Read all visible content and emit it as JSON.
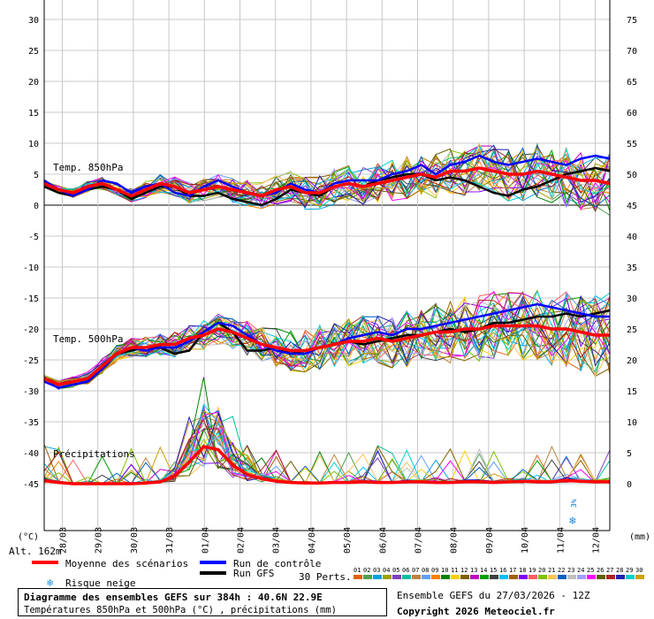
{
  "chart_data": {
    "type": "line",
    "title": "Diagramme des ensembles GEFS sur 384h : 40.6N 22.9E",
    "subtitle": "Températures 850hPa et 500hPa (°C) , précipitations (mm)",
    "left_axis": {
      "unit": "(°C)",
      "ticks": [
        30,
        25,
        20,
        15,
        10,
        5,
        0,
        -5,
        -10,
        -15,
        -20,
        -25,
        -30,
        -35,
        -40,
        -45
      ],
      "range": [
        -45,
        30
      ]
    },
    "right_axis": {
      "unit": "(mm)",
      "ticks": [
        75,
        70,
        65,
        60,
        55,
        50,
        45,
        40,
        35,
        30,
        25,
        20,
        15,
        10,
        5,
        0
      ],
      "range": [
        0,
        75
      ]
    },
    "x_ticks": [
      "28/03",
      "29/03",
      "30/03",
      "31/03",
      "01/04",
      "02/04",
      "03/04",
      "04/04",
      "05/04",
      "06/04",
      "07/04",
      "08/04",
      "09/04",
      "10/04",
      "11/04",
      "12/04"
    ],
    "section_labels": {
      "t850": "Temp. 850hPa",
      "t500": "Temp. 500hPa",
      "precip": "Précipitations"
    },
    "altitude": "Alt. 162m",
    "grid": true,
    "series": [
      {
        "name": "Moyenne des scénarios",
        "color": "#ff0000",
        "role": "mean"
      },
      {
        "name": "Run de contrôle",
        "color": "#0000ff",
        "role": "control"
      },
      {
        "name": "Run GFS",
        "color": "#000000",
        "role": "gfs"
      }
    ],
    "t850_mean": [
      3.5,
      2.5,
      2,
      3,
      3.5,
      2.5,
      1.5,
      2.5,
      3.5,
      3,
      2,
      2.5,
      3,
      2.5,
      2,
      1.5,
      2.5,
      3,
      2,
      2,
      3,
      3.5,
      3,
      3.5,
      4,
      4.5,
      5,
      4.5,
      5.5,
      5.5,
      6,
      5.5,
      5,
      5,
      5.5,
      5,
      4.5,
      4,
      4,
      3.5
    ],
    "t850_control": [
      4,
      2.5,
      1.5,
      2.5,
      4,
      3.5,
      2,
      3,
      3.5,
      2,
      1.5,
      3,
      4,
      3,
      2,
      1.5,
      2,
      3.5,
      2.5,
      2,
      3.5,
      4,
      4,
      4,
      5,
      5.5,
      6.5,
      5,
      6.5,
      7,
      8,
      7,
      6.5,
      7,
      7.5,
      7,
      6.5,
      7.5,
      8,
      7.5
    ],
    "t850_gfs": [
      3,
      2,
      1.5,
      2.5,
      3,
      2.5,
      1,
      2,
      3,
      3,
      1.5,
      1.5,
      2,
      1,
      0.5,
      0,
      1,
      2.5,
      2,
      1.5,
      3,
      3.5,
      3,
      4,
      4.5,
      5,
      5,
      4,
      4.5,
      4,
      3,
      2,
      1.5,
      2.5,
      3,
      4,
      5,
      5.5,
      6,
      5.5
    ],
    "t500_mean": [
      -28,
      -29,
      -28.5,
      -28,
      -26,
      -24,
      -23,
      -23,
      -22.5,
      -22.5,
      -21.5,
      -21,
      -20,
      -20.5,
      -21.5,
      -22.5,
      -23,
      -23.5,
      -23.5,
      -23,
      -22.5,
      -22,
      -22,
      -21.5,
      -22,
      -21.5,
      -21,
      -20.5,
      -20.5,
      -20,
      -20,
      -19.5,
      -19.5,
      -19.5,
      -19.5,
      -20,
      -20,
      -20.5,
      -21,
      -21
    ],
    "t500_control": [
      -28.5,
      -29.5,
      -29,
      -28.5,
      -26.5,
      -24,
      -23,
      -23.5,
      -23,
      -23,
      -22,
      -20.5,
      -19,
      -19.5,
      -21,
      -22.5,
      -23.5,
      -24,
      -24,
      -23,
      -22.5,
      -21.5,
      -21,
      -20.5,
      -21,
      -20,
      -20,
      -19.5,
      -19,
      -18.5,
      -18,
      -17.5,
      -17,
      -16.5,
      -16,
      -16.5,
      -17,
      -17.5,
      -18,
      -18
    ],
    "t500_gfs": [
      -28,
      -29,
      -28.5,
      -28,
      -26,
      -24,
      -23.5,
      -23,
      -23,
      -24,
      -23.5,
      -20.5,
      -19,
      -20.5,
      -23.5,
      -23.5,
      -23,
      -24,
      -23.5,
      -23,
      -22.5,
      -22,
      -22.5,
      -22,
      -21.5,
      -21,
      -21,
      -20.5,
      -20,
      -20.5,
      -20,
      -19,
      -19,
      -18.5,
      -18,
      -18,
      -17.5,
      -18,
      -17.5,
      -17
    ],
    "precip_mean": [
      0.5,
      0.2,
      0,
      0,
      0,
      0,
      0,
      0.1,
      0.3,
      1.2,
      3.5,
      6,
      5.5,
      3,
      1.5,
      0.8,
      0.4,
      0.2,
      0.1,
      0.1,
      0.2,
      0.2,
      0.3,
      0.2,
      0.2,
      0.3,
      0.3,
      0.2,
      0.2,
      0.3,
      0.3,
      0.2,
      0.3,
      0.4,
      0.3,
      0.3,
      0.5,
      0.4,
      0.3,
      0.3
    ],
    "snow_risk": {
      "label": "Risque neige",
      "value": "3%"
    },
    "members": {
      "label": "30 Perts.",
      "ids": [
        "01",
        "02",
        "03",
        "04",
        "05",
        "06",
        "07",
        "08",
        "09",
        "10",
        "11",
        "12",
        "13",
        "14",
        "15",
        "16",
        "17",
        "18",
        "19",
        "20",
        "21",
        "22",
        "23",
        "24",
        "25",
        "26",
        "27",
        "28",
        "29",
        "30"
      ]
    }
  },
  "palette": [
    "#e06010",
    "#50a050",
    "#00a0e0",
    "#a0a000",
    "#8040c0",
    "#00c0a0",
    "#c08040",
    "#60a0ff",
    "#ff8000",
    "#008000",
    "#ffd000",
    "#806000",
    "#c000c0",
    "#00a000",
    "#404040",
    "#00c0ff",
    "#a06000",
    "#8000ff",
    "#ff6060",
    "#80c000",
    "#ffc060",
    "#0060c0",
    "#c0c0c0",
    "#a0a0ff",
    "#ff00ff",
    "#606000",
    "#b02020",
    "#2020b0",
    "#00d0d0",
    "#d0a000"
  ],
  "footer": {
    "title": "Diagramme des ensembles GEFS sur 384h : 40.6N 22.9E",
    "subtitle": "Températures 850hPa et 500hPa (°C) , précipitations (mm)",
    "run": "Ensemble GEFS du 27/03/2026 - 12Z",
    "copyright": "Copyright 2026 Meteociel.fr"
  }
}
